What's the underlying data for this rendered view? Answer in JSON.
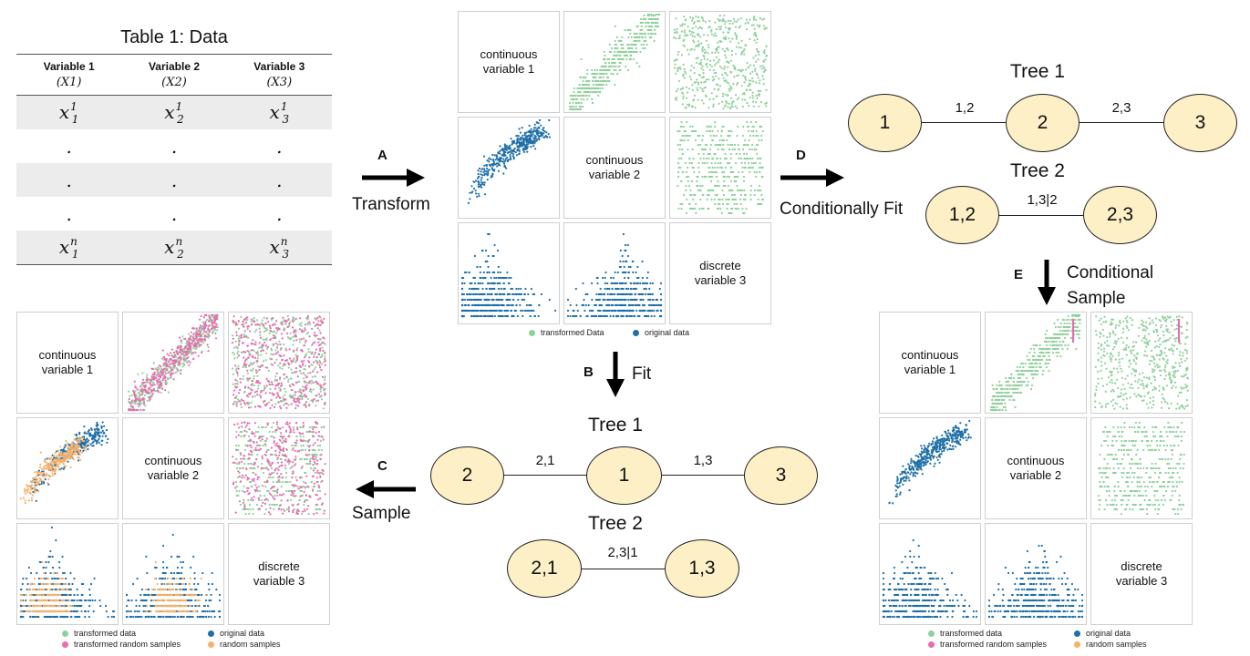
{
  "table": {
    "title": "Table 1: Data",
    "headers": [
      {
        "name": "Variable 1",
        "symbol": "(X1)"
      },
      {
        "name": "Variable 2",
        "symbol": "(X2)"
      },
      {
        "name": "Variable 3",
        "symbol": "(X3)"
      }
    ],
    "first_row": [
      "x",
      "x",
      "x"
    ],
    "ellipsis": ".",
    "last_row": [
      "x",
      "x",
      "x"
    ]
  },
  "steps": {
    "a": {
      "letter": "A",
      "text": "Transform"
    },
    "b": {
      "letter": "B",
      "text": "Fit"
    },
    "c": {
      "letter": "C",
      "text": "Sample"
    },
    "d": {
      "letter": "D",
      "text": "Conditionally Fit"
    },
    "e": {
      "letter": "E",
      "text": "Conditional Sample"
    }
  },
  "pairplots": {
    "labels": {
      "v1": [
        "continuous",
        "variable 1"
      ],
      "v2": [
        "continuous",
        "variable 2"
      ],
      "v3": [
        "discrete",
        "variable 3"
      ]
    },
    "legend_top": [
      "transformed Data",
      "original data"
    ],
    "legend_bottom": [
      "transformed data",
      "original data",
      "transformed random samples",
      "random samples"
    ]
  },
  "colors": {
    "transformed": "#8fd09b",
    "original": "#1f6fa8",
    "transformed_samples": "#e96bb0",
    "random_samples": "#f6b26b",
    "node_fill": "#fdf0c6"
  },
  "tree_fit": {
    "tree1": {
      "title": "Tree 1",
      "nodes": [
        "2",
        "1",
        "3"
      ],
      "edges": [
        "2,1",
        "1,3"
      ]
    },
    "tree2": {
      "title": "Tree 2",
      "nodes": [
        "2,1",
        "1,3"
      ],
      "edges": [
        "2,3|1"
      ]
    }
  },
  "tree_cond": {
    "tree1": {
      "title": "Tree 1",
      "nodes": [
        "1",
        "2",
        "3"
      ],
      "edges": [
        "1,2",
        "2,3"
      ]
    },
    "tree2": {
      "title": "Tree 2",
      "nodes": [
        "1,2",
        "2,3"
      ],
      "edges": [
        "1,3|2"
      ]
    }
  }
}
